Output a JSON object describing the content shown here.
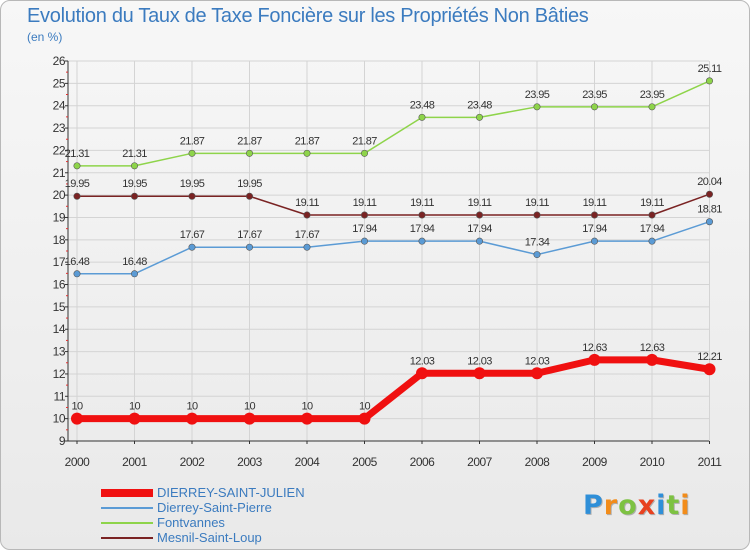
{
  "title": "Evolution du Taux de Taxe Foncière sur les Propriétés Non Bâties",
  "subtitle": "(en %)",
  "brand": {
    "name": "Proxiti",
    "letters": [
      "P",
      "r",
      "o",
      "x",
      "i",
      "t",
      "i"
    ],
    "colors": [
      "#2f8fd8",
      "#f28c1a",
      "#7dc242",
      "#e8411f",
      "#2f8fd8",
      "#7dc242",
      "#f28c1a"
    ]
  },
  "chart_data": {
    "type": "line",
    "title": "Evolution du Taux de Taxe Foncière sur les Propriétés Non Bâties",
    "ylabel": "(en %)",
    "xlabel": "",
    "ylim": [
      9,
      26
    ],
    "yticks": [
      9,
      10,
      11,
      12,
      13,
      14,
      15,
      16,
      17,
      18,
      19,
      20,
      21,
      22,
      23,
      24,
      25,
      26
    ],
    "x": [
      "2000",
      "2001",
      "2002",
      "2003",
      "2004",
      "2005",
      "2006",
      "2007",
      "2008",
      "2009",
      "2010",
      "2011"
    ],
    "grid": true,
    "legend_position": "bottom-left",
    "series": [
      {
        "name": "DIERREY-SAINT-JULIEN",
        "color": "#f01010",
        "thick": true,
        "values": [
          10,
          10,
          10,
          10,
          10,
          10,
          12.03,
          12.03,
          12.03,
          12.63,
          12.63,
          12.21
        ],
        "labels": [
          "10",
          "10",
          "10",
          "10",
          "10",
          "10",
          "12.03",
          "12.03",
          "12.03",
          "12.63",
          "12.63",
          "12.21"
        ]
      },
      {
        "name": "Dierrey-Saint-Pierre",
        "color": "#5b9bd5",
        "thick": false,
        "values": [
          16.48,
          16.48,
          17.67,
          17.67,
          17.67,
          17.94,
          17.94,
          17.94,
          17.34,
          17.94,
          17.94,
          18.81
        ],
        "labels": [
          "16.48",
          "16.48",
          "17.67",
          "17.67",
          "17.67",
          "17.94",
          "17.94",
          "17.94",
          "17.34",
          "17.94",
          "17.94",
          "18.81"
        ]
      },
      {
        "name": "Fontvannes",
        "color": "#8ed44a",
        "thick": false,
        "values": [
          21.31,
          21.31,
          21.87,
          21.87,
          21.87,
          21.87,
          23.48,
          23.48,
          23.95,
          23.95,
          23.95,
          25.11
        ],
        "labels": [
          "21.31",
          "21.31",
          "21.87",
          "21.87",
          "21.87",
          "21.87",
          "23.48",
          "23.48",
          "23.95",
          "23.95",
          "23.95",
          "25.11"
        ]
      },
      {
        "name": "Mesnil-Saint-Loup",
        "color": "#7a2323",
        "thick": false,
        "values": [
          19.95,
          19.95,
          19.95,
          19.95,
          19.11,
          19.11,
          19.11,
          19.11,
          19.11,
          19.11,
          19.11,
          20.04
        ],
        "labels": [
          "19.95",
          "19.95",
          "19.95",
          "19.95",
          "19.11",
          "19.11",
          "19.11",
          "19.11",
          "19.11",
          "19.11",
          "19.11",
          "20.04"
        ]
      }
    ]
  }
}
